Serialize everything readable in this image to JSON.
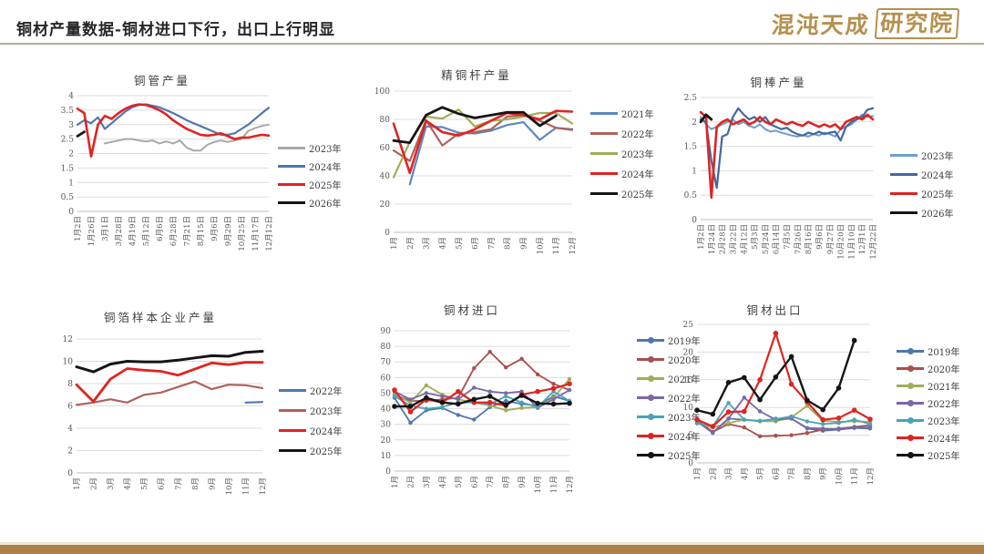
{
  "page": {
    "title": "铜材产量数据-铜材进口下行，出口上行明显",
    "logo": {
      "text_main": "混沌天成",
      "text_seal": "研究院"
    },
    "accent_color": "#b6904d",
    "footer_color": "#ad7f4a"
  },
  "chart_data": [
    {
      "id": "copper-tube-output",
      "type": "line",
      "title": "铜管产量",
      "ylim": [
        0,
        4
      ],
      "yticks": [
        0,
        0.5,
        1,
        1.5,
        2,
        2.5,
        3,
        3.5,
        4
      ],
      "grid": true,
      "markers": false,
      "legend_position": "right",
      "x_labels": [
        "1月2日",
        "1月26日",
        "3月1日",
        "3月28日",
        "4月19日",
        "5月12日",
        "6月6日",
        "6月28日",
        "7月21日",
        "8月15日",
        "9月6日",
        "9月29日",
        "10月25日",
        "11月17日",
        "12月12日"
      ],
      "series": [
        {
          "name": "2023年",
          "color": "#a8a8a8",
          "width": 2,
          "values": [
            null,
            null,
            null,
            null,
            2.35,
            2.4,
            2.45,
            2.5,
            2.5,
            2.45,
            2.42,
            2.45,
            2.35,
            2.42,
            2.35,
            2.45,
            2.2,
            2.1,
            2.1,
            2.3,
            2.4,
            2.45,
            2.4,
            2.45,
            2.5,
            2.78,
            2.88,
            2.95,
            3.0
          ]
        },
        {
          "name": "2024年",
          "color": "#4f77ae",
          "width": 2.2,
          "values": [
            3.0,
            3.15,
            3.05,
            3.25,
            2.85,
            3.05,
            3.25,
            3.45,
            3.6,
            3.68,
            3.7,
            3.65,
            3.6,
            3.5,
            3.4,
            3.28,
            3.15,
            3.05,
            2.95,
            2.85,
            2.75,
            2.65,
            2.65,
            2.7,
            2.85,
            3.0,
            3.2,
            3.4,
            3.58
          ]
        },
        {
          "name": "2025年",
          "color": "#df2422",
          "width": 2.6,
          "values": [
            3.55,
            3.4,
            1.9,
            3.0,
            3.3,
            3.2,
            3.4,
            3.55,
            3.65,
            3.7,
            3.68,
            3.6,
            3.5,
            3.35,
            3.15,
            3.0,
            2.85,
            2.75,
            2.65,
            2.62,
            2.65,
            2.7,
            2.6,
            2.5,
            2.55,
            2.55,
            2.6,
            2.65,
            2.62
          ]
        },
        {
          "name": "2026年",
          "color": "#151515",
          "width": 2.8,
          "values": [
            2.6,
            2.75,
            null,
            null,
            null,
            null,
            null,
            null,
            null,
            null,
            null,
            null,
            null,
            null,
            null,
            null,
            null,
            null,
            null,
            null,
            null,
            null,
            null,
            null,
            null,
            null,
            null,
            null,
            null
          ]
        }
      ]
    },
    {
      "id": "refined-copper-rod-output",
      "type": "line",
      "title": "精铜杆产量",
      "ylim": [
        0,
        100
      ],
      "yticks": [
        0,
        20,
        40,
        60,
        80,
        100
      ],
      "grid": true,
      "markers": false,
      "legend_position": "right",
      "x_labels": [
        "1月",
        "2月",
        "3月",
        "4月",
        "5月",
        "6月",
        "7月",
        "8月",
        "9月",
        "10月",
        "11月",
        "12月"
      ],
      "series": [
        {
          "name": "2021年",
          "color": "#5b87c0",
          "width": 2.2,
          "values": [
            null,
            34,
            75,
            74.5,
            70.5,
            70,
            72,
            76,
            78,
            65.5,
            74,
            73
          ]
        },
        {
          "name": "2022年",
          "color": "#b0605d",
          "width": 2.2,
          "values": [
            58,
            50.5,
            79.5,
            61.5,
            70,
            71,
            73,
            82,
            83,
            79,
            74,
            72.5
          ]
        },
        {
          "name": "2023年",
          "color": "#a0ae58",
          "width": 2.2,
          "values": [
            39,
            64,
            82,
            80.5,
            87,
            75,
            79,
            80,
            82,
            84.5,
            84.5,
            77
          ]
        },
        {
          "name": "2024年",
          "color": "#df2422",
          "width": 2.6,
          "values": [
            77,
            42,
            79,
            71,
            68.5,
            73,
            79,
            84.5,
            83,
            80,
            86,
            85.5
          ]
        },
        {
          "name": "2025年",
          "color": "#151515",
          "width": 2.8,
          "values": [
            65,
            63.5,
            83,
            88.5,
            84,
            81,
            83,
            85,
            85,
            75.5,
            82.5,
            null
          ]
        }
      ]
    },
    {
      "id": "copper-bar-output",
      "type": "line",
      "title": "铜棒产量",
      "ylim": [
        0,
        2.5
      ],
      "yticks": [
        0,
        0.5,
        1,
        1.5,
        2,
        2.5
      ],
      "grid": true,
      "markers": false,
      "legend_position": "right",
      "x_labels": [
        "1月2日",
        "1月24日",
        "2月28日",
        "3月22日",
        "4月12日",
        "5月3日",
        "5月24日",
        "6月14日",
        "7月5日",
        "7月26日",
        "8月16日",
        "9月6日",
        "9月27日",
        "10月20日",
        "11月10日",
        "12月1日",
        "12月22日"
      ],
      "series": [
        {
          "name": "2023年",
          "color": "#6f9dc9",
          "width": 2,
          "values": [
            2.1,
            1.95,
            1.85,
            1.9,
            1.95,
            2.0,
            2.05,
            1.95,
            2.0,
            1.92,
            1.88,
            1.95,
            1.85,
            1.8,
            1.82,
            1.78,
            1.75,
            1.72,
            1.7,
            1.73,
            1.7,
            1.75,
            1.72,
            1.78,
            1.75,
            1.7,
            1.85,
            1.9,
            1.95,
            2.05,
            2.15,
            2.1,
            2.12
          ]
        },
        {
          "name": "2024年",
          "color": "#41699f",
          "width": 2.2,
          "values": [
            2.05,
            2.0,
            1.2,
            0.65,
            1.7,
            1.75,
            2.1,
            2.28,
            2.15,
            2.05,
            2.1,
            2.0,
            2.1,
            1.95,
            1.9,
            1.85,
            1.88,
            1.8,
            1.75,
            1.72,
            1.78,
            1.75,
            1.8,
            1.75,
            1.78,
            1.8,
            1.62,
            1.9,
            2.0,
            2.05,
            2.1,
            2.25,
            2.28
          ]
        },
        {
          "name": "2025年",
          "color": "#df2422",
          "width": 2.6,
          "values": [
            2.2,
            2.1,
            0.45,
            1.9,
            2.0,
            2.05,
            1.95,
            2.0,
            2.05,
            1.95,
            2.0,
            2.1,
            2.0,
            1.95,
            2.05,
            2.0,
            1.95,
            2.0,
            1.95,
            1.92,
            2.0,
            1.95,
            1.9,
            1.95,
            1.9,
            1.95,
            1.85,
            2.0,
            2.05,
            2.1,
            2.05,
            2.15,
            2.05
          ]
        },
        {
          "name": "2026年",
          "color": "#151515",
          "width": 2.8,
          "values": [
            2.0,
            2.15,
            2.05,
            null,
            null,
            null,
            null,
            null,
            null,
            null,
            null,
            null,
            null,
            null,
            null,
            null,
            null,
            null,
            null,
            null,
            null,
            null,
            null,
            null,
            null,
            null,
            null,
            null,
            null,
            null,
            null,
            null,
            null
          ]
        }
      ]
    },
    {
      "id": "copper-foil-sample-enterprise-output",
      "type": "line",
      "title": "铜箔样本企业产量",
      "ylim": [
        0,
        12
      ],
      "yticks": [
        0,
        2,
        4,
        6,
        8,
        10,
        12
      ],
      "grid": true,
      "markers": false,
      "legend_position": "right",
      "x_labels": [
        "1月",
        "2月",
        "3月",
        "4月",
        "5月",
        "6月",
        "7月",
        "8月",
        "9月",
        "10月",
        "11月",
        "12月"
      ],
      "series": [
        {
          "name": "2022年",
          "color": "#4f77ae",
          "width": 2.2,
          "values": [
            null,
            null,
            null,
            null,
            null,
            null,
            null,
            null,
            null,
            null,
            6.3,
            6.35
          ]
        },
        {
          "name": "2023年",
          "color": "#b0605d",
          "width": 2.2,
          "values": [
            6.1,
            6.3,
            6.6,
            6.3,
            7.0,
            7.2,
            7.7,
            8.2,
            7.5,
            7.9,
            7.85,
            7.6
          ]
        },
        {
          "name": "2024年",
          "color": "#df2422",
          "width": 2.8,
          "values": [
            7.9,
            6.4,
            8.4,
            9.35,
            9.2,
            9.1,
            8.75,
            9.3,
            9.85,
            9.7,
            9.9,
            9.9
          ]
        },
        {
          "name": "2025年",
          "color": "#151515",
          "width": 3,
          "values": [
            9.5,
            9.05,
            9.75,
            10.0,
            9.95,
            9.95,
            10.1,
            10.3,
            10.5,
            10.45,
            10.8,
            10.9
          ]
        }
      ]
    },
    {
      "id": "copper-products-imports",
      "type": "line",
      "title": "铜材进口",
      "ylim": [
        0,
        90
      ],
      "yticks": [
        0,
        10,
        20,
        30,
        40,
        50,
        60,
        70,
        80,
        90
      ],
      "grid": true,
      "markers": true,
      "legend_position": "right",
      "x_labels": [
        "1月",
        "2月",
        "3月",
        "4月",
        "5月",
        "6月",
        "7月",
        "8月",
        "9月",
        "10月",
        "11月",
        "12月"
      ],
      "series": [
        {
          "name": "2019年",
          "color": "#4f77ae",
          "width": 1.8,
          "values": [
            47,
            31,
            39,
            40.5,
            36,
            33,
            41,
            45,
            43,
            42,
            48,
            45
          ]
        },
        {
          "name": "2020年",
          "color": "#a8504d",
          "width": 1.8,
          "values": [
            49,
            45,
            45,
            46,
            47,
            66,
            76.5,
            66.5,
            72,
            62,
            56,
            52
          ]
        },
        {
          "name": "2021年",
          "color": "#a0ae58",
          "width": 1.8,
          "values": [
            49,
            44,
            55,
            49,
            46,
            44,
            42,
            39,
            40.5,
            41,
            47,
            59
          ]
        },
        {
          "name": "2022年",
          "color": "#7a68a8",
          "width": 1.8,
          "values": [
            51,
            46,
            50,
            48,
            46,
            53.5,
            51,
            50,
            51,
            40.5,
            46,
            52
          ]
        },
        {
          "name": "2023年",
          "color": "#4aa3b8",
          "width": 1.8,
          "values": [
            48,
            42,
            40,
            41,
            44,
            44,
            43,
            48,
            44,
            41,
            51,
            45
          ]
        },
        {
          "name": "2024年",
          "color": "#df2422",
          "width": 2.2,
          "values": [
            52,
            38,
            46,
            44,
            51,
            44,
            44,
            42,
            49,
            51,
            53,
            56
          ]
        },
        {
          "name": "2025年",
          "color": "#151515",
          "width": 2.4,
          "values": [
            41.5,
            41.5,
            47,
            44,
            43,
            46,
            48,
            42.5,
            48.5,
            43.5,
            43,
            43.5
          ]
        }
      ]
    },
    {
      "id": "copper-products-exports",
      "type": "line",
      "title": "铜材出口",
      "ylim": [
        0,
        25
      ],
      "yticks": [
        0,
        5,
        10,
        15,
        20,
        25
      ],
      "grid": true,
      "markers": true,
      "legend_position": "right",
      "x_labels": [
        "1月",
        "2月",
        "3月",
        "4月",
        "5月",
        "6月",
        "7月",
        "8月",
        "9月",
        "10月",
        "11月",
        "12月"
      ],
      "series": [
        {
          "name": "2019年",
          "color": "#4f77ae",
          "width": 1.8,
          "values": [
            7.8,
            5.5,
            8.0,
            7.8,
            7.5,
            8.0,
            8.0,
            6.2,
            5.8,
            6.0,
            6.3,
            6.2
          ]
        },
        {
          "name": "2020年",
          "color": "#a8504d",
          "width": 1.8,
          "values": [
            7.7,
            5.6,
            7.0,
            6.4,
            4.8,
            4.9,
            5.0,
            5.4,
            6.0,
            6.2,
            6.5,
            6.8
          ]
        },
        {
          "name": "2021年",
          "color": "#a0ae58",
          "width": 1.8,
          "values": [
            7.1,
            6.4,
            7.2,
            7.8,
            7.5,
            7.5,
            8.2,
            10.3,
            7.6,
            7.4,
            7.5,
            7.4
          ]
        },
        {
          "name": "2022年",
          "color": "#7a68a8",
          "width": 1.8,
          "values": [
            7.5,
            5.4,
            8.0,
            11.8,
            9.3,
            7.8,
            8.0,
            6.3,
            6.2,
            6.1,
            6.4,
            6.4
          ]
        },
        {
          "name": "2023年",
          "color": "#4aa3b8",
          "width": 1.8,
          "values": [
            7.2,
            6.6,
            10.8,
            7.8,
            7.6,
            7.9,
            8.4,
            7.5,
            7.0,
            7.2,
            7.8,
            7.0
          ]
        },
        {
          "name": "2024年",
          "color": "#df2422",
          "width": 2.2,
          "values": [
            7.8,
            6.6,
            9.2,
            9.3,
            15.0,
            23.4,
            14.2,
            11.0,
            7.8,
            8.1,
            9.5,
            7.9
          ]
        },
        {
          "name": "2025年",
          "color": "#151515",
          "width": 2.4,
          "values": [
            9.5,
            8.8,
            14.5,
            15.4,
            11.4,
            15.5,
            19.2,
            11.3,
            9.6,
            13.5,
            22.1,
            null
          ]
        }
      ]
    }
  ]
}
